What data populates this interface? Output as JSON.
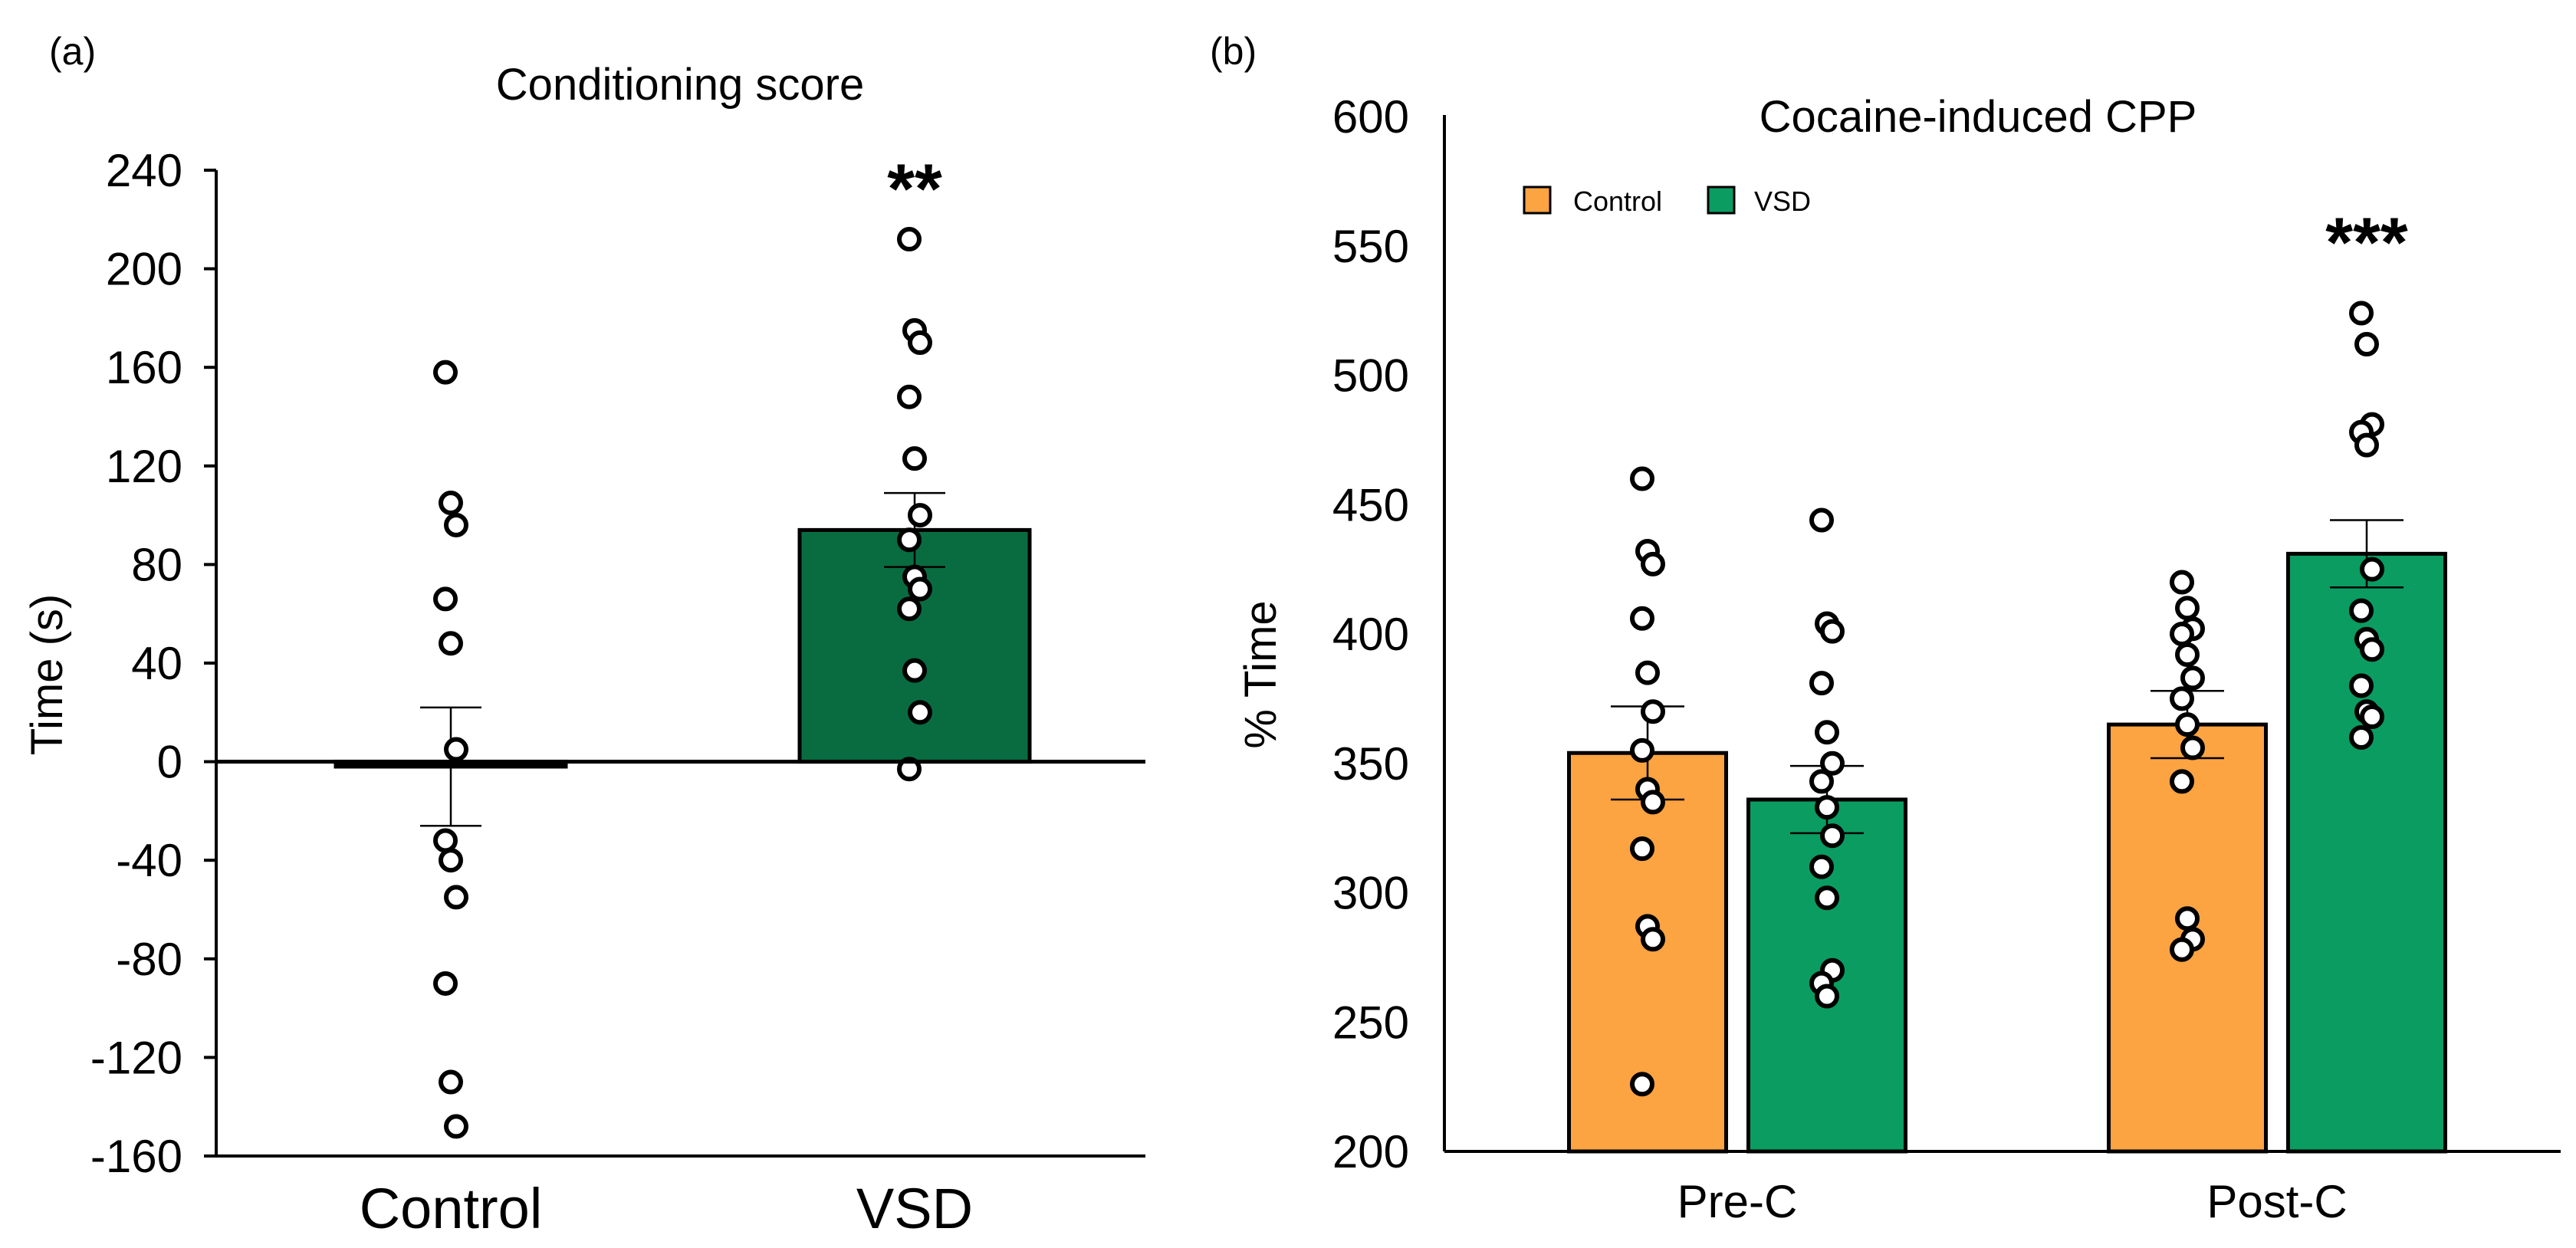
{
  "chart_data": [
    {
      "panel_label": "(a)",
      "type": "bar",
      "title": "Conditioning score",
      "xlabel": "",
      "ylabel": "Time (s)",
      "ylim": [
        -160,
        240
      ],
      "yticks": [
        240,
        200,
        160,
        120,
        80,
        40,
        0,
        -40,
        -80,
        -120,
        -160
      ],
      "categories": [
        "Control",
        "VSD"
      ],
      "values": [
        -2,
        94
      ],
      "sem": [
        24,
        15
      ],
      "bar_colors": [
        "#000000",
        "#096c41"
      ],
      "individual_points": [
        [
          158,
          105,
          96,
          66,
          48,
          5,
          -32,
          -40,
          -55,
          -90,
          -130,
          -148
        ],
        [
          212,
          175,
          170,
          148,
          123,
          100,
          90,
          75,
          70,
          62,
          37,
          20,
          -3
        ]
      ],
      "significance": [
        {
          "category": "VSD",
          "label": "**"
        }
      ]
    },
    {
      "panel_label": "(b)",
      "type": "bar",
      "title": "Cocaine-induced CPP",
      "xlabel": "",
      "ylabel": "% Time",
      "ylim": [
        200,
        600
      ],
      "yticks": [
        600,
        550,
        500,
        450,
        400,
        350,
        300,
        250,
        200
      ],
      "categories": [
        "Pre-C",
        "Post-C"
      ],
      "legend_position": "top-left",
      "series": [
        {
          "name": "Control",
          "color": "#fca342",
          "values": [
            354,
            365
          ],
          "sem": [
            18,
            13
          ],
          "individual_points": [
            [
              460,
              432,
              427,
              406,
              385,
              370,
              355,
              340,
              335,
              317,
              287,
              282,
              226
            ],
            [
              420,
              410,
              402,
              400,
              392,
              383,
              375,
              365,
              356,
              343,
              290,
              282,
              278
            ]
          ]
        },
        {
          "name": "VSD",
          "color": "#0b9c61",
          "values": [
            336,
            431
          ],
          "sem": [
            13,
            13
          ],
          "individual_points": [
            [
              444,
              404,
              401,
              381,
              362,
              350,
              343,
              333,
              322,
              310,
              298,
              270,
              265,
              260
            ],
            [
              524,
              512,
              481,
              478,
              473,
              425,
              409,
              398,
              394,
              380,
              370,
              368,
              360
            ]
          ]
        }
      ],
      "significance": [
        {
          "category": "Post-C",
          "label": "***"
        }
      ]
    }
  ]
}
